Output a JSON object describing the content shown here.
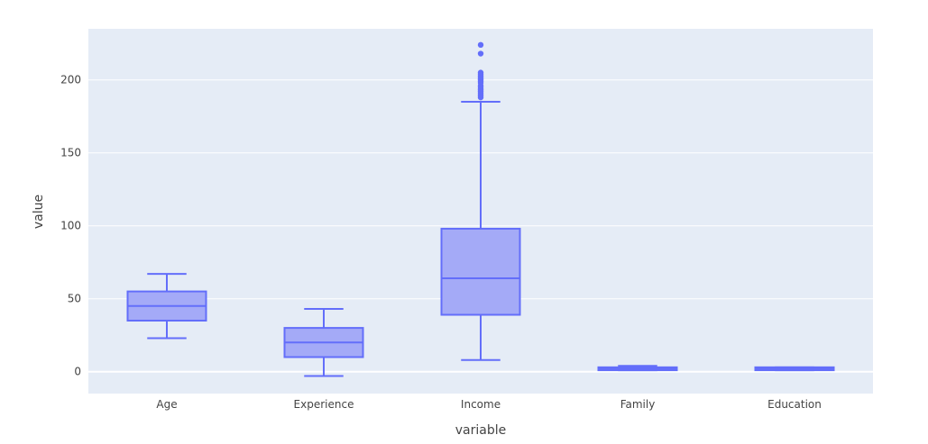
{
  "chart_data": {
    "type": "box",
    "xlabel": "variable",
    "ylabel": "value",
    "ylim": [
      -15,
      235
    ],
    "yticks": [
      0,
      50,
      100,
      150,
      200
    ],
    "grid": true,
    "legend": "none",
    "colors": {
      "plot_bg": "#e5ecf6",
      "grid": "#ffffff",
      "box_line": "#636efa",
      "box_fill": "#a4aaf7",
      "text": "#444444"
    },
    "boxes": [
      {
        "category": "Age",
        "min": 23,
        "q1": 35,
        "median": 45,
        "q3": 55,
        "max": 67,
        "outliers": []
      },
      {
        "category": "Experience",
        "min": -3,
        "q1": 10,
        "median": 20,
        "q3": 30,
        "max": 43,
        "outliers": []
      },
      {
        "category": "Income",
        "min": 8,
        "q1": 39,
        "median": 64,
        "q3": 98,
        "max": 185,
        "outliers": [
          188,
          189,
          190,
          191,
          192,
          193,
          194,
          195,
          196,
          198,
          199,
          200,
          201,
          202,
          203,
          204,
          205,
          218,
          224
        ]
      },
      {
        "category": "Family",
        "min": 1,
        "q1": 1,
        "median": 2,
        "q3": 3,
        "max": 4,
        "outliers": []
      },
      {
        "category": "Education",
        "min": 1,
        "q1": 1,
        "median": 2,
        "q3": 3,
        "max": 3,
        "outliers": []
      }
    ]
  }
}
